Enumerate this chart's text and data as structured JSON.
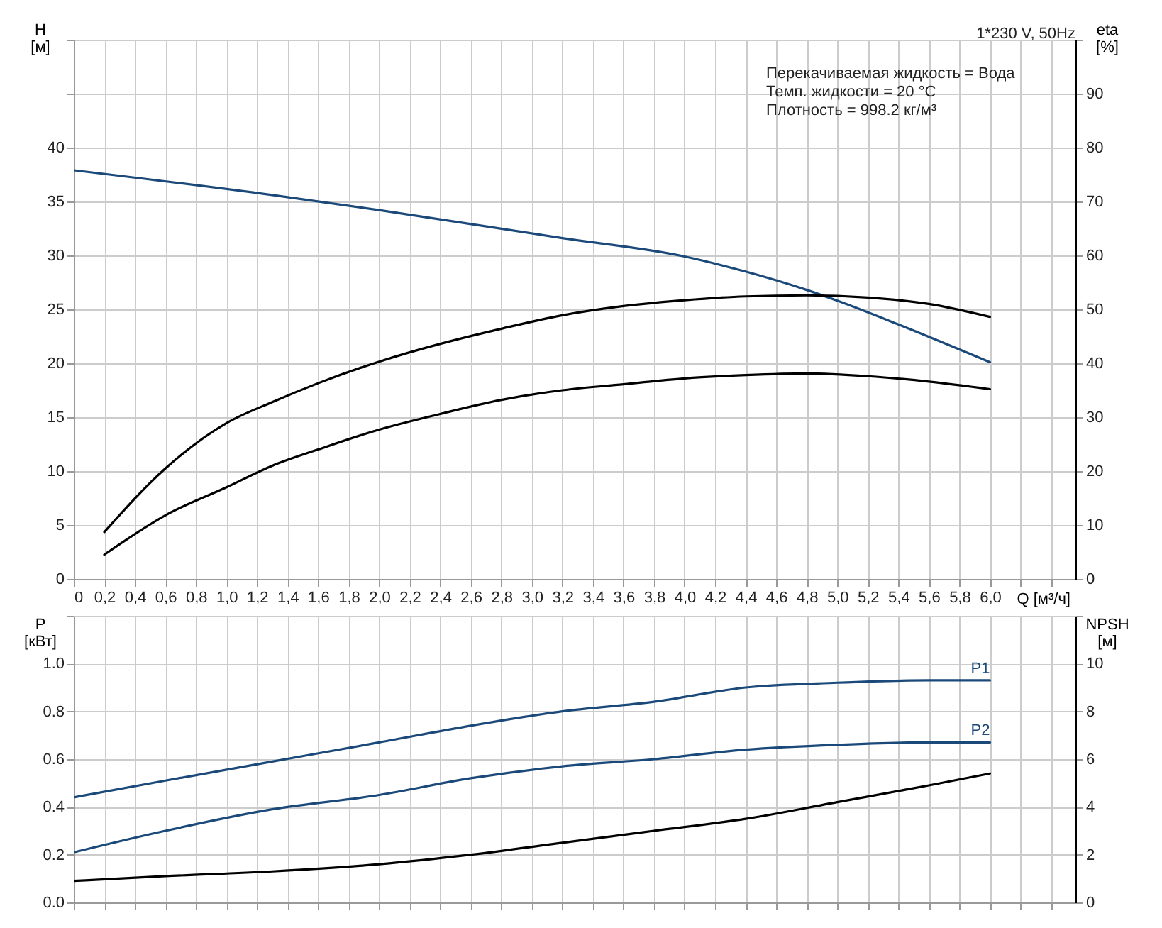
{
  "chart_data": [
    {
      "type": "line",
      "title": "1*230 V, 50Hz",
      "xlabel": "Q [м³/ч]",
      "ylabel": "H [м]",
      "y2label": "eta [%]",
      "annotations": [
        "Перекачиваемая жидкость = Вода",
        "Темп. жидкости = 20 °C",
        "Плотность = 998.2 кг/м³"
      ],
      "xlim": [
        0,
        6.56
      ],
      "xticks": [
        0,
        {
          "value": 0.2,
          "label": "0,2"
        },
        {
          "value": 0.4,
          "label": "0,4"
        },
        {
          "value": 0.6,
          "label": "0,6"
        },
        {
          "value": 0.8,
          "label": "0,8"
        },
        {
          "value": 1,
          "label": "1,0"
        },
        {
          "value": 1.2,
          "label": "1,2"
        },
        {
          "value": 1.4,
          "label": "1,4"
        },
        {
          "value": 1.6,
          "label": "1,6"
        },
        {
          "value": 1.8,
          "label": "1,8"
        },
        {
          "value": 2,
          "label": "2,0"
        },
        {
          "value": 2.2,
          "label": "2,2"
        },
        {
          "value": 2.4,
          "label": "2,4"
        },
        {
          "value": 2.6,
          "label": "2,6"
        },
        {
          "value": 2.8,
          "label": "2,8"
        },
        {
          "value": 3,
          "label": "3,0"
        },
        {
          "value": 3.2,
          "label": "3,2"
        },
        {
          "value": 3.4,
          "label": "3,4"
        },
        {
          "value": 3.6,
          "label": "3,6"
        },
        {
          "value": 3.8,
          "label": "3,8"
        },
        {
          "value": 4,
          "label": "4,0"
        },
        {
          "value": 4.2,
          "label": "4,2"
        },
        {
          "value": 4.4,
          "label": "4,4"
        },
        {
          "value": 4.6,
          "label": "4,6"
        },
        {
          "value": 4.8,
          "label": "4,8"
        },
        {
          "value": 5,
          "label": "5,0"
        },
        {
          "value": 5.2,
          "label": "5,2"
        },
        {
          "value": 5.4,
          "label": "5,4"
        },
        {
          "value": 5.6,
          "label": "5,6"
        },
        {
          "value": 5.8,
          "label": "5,8"
        },
        {
          "value": 6,
          "label": "6,0"
        },
        {
          "value": 6.2,
          "label": null
        },
        {
          "value": 6.4,
          "label": null
        }
      ],
      "ylim": [
        0,
        50
      ],
      "yticks": [
        0,
        5,
        10,
        15,
        20,
        25,
        30,
        35,
        40,
        {
          "value": 45,
          "label": null
        },
        {
          "value": 50,
          "label": null
        }
      ],
      "y2lim": [
        0,
        100
      ],
      "y2ticks": [
        0,
        10,
        20,
        30,
        40,
        50,
        60,
        70,
        80,
        90,
        {
          "value": 100,
          "label": null
        }
      ],
      "grid": true,
      "legend": false,
      "series": [
        {
          "color": "#1b4a7a",
          "x": [
            0,
            1.3,
            2.0,
            3.2,
            4.0,
            4.4,
            4.8,
            5.0,
            5.4,
            6.0
          ],
          "values": [
            37.9,
            35.6,
            34.2,
            31.6,
            29.9,
            28.5,
            26.8,
            25.8,
            23.6,
            20.1
          ]
        },
        {
          "color": "#000000",
          "axis": "y2",
          "x": [
            0.2,
            0.6,
            1.0,
            1.3,
            1.6,
            2.0,
            2.4,
            2.8,
            3.2,
            3.6,
            4.0,
            4.4,
            4.8,
            5.2,
            5.6,
            6.0
          ],
          "values": [
            8.7,
            20.5,
            28.9,
            32.8,
            36.3,
            40.3,
            43.6,
            46.4,
            48.9,
            50.6,
            51.7,
            52.4,
            52.6,
            52.2,
            51.0,
            48.6
          ]
        },
        {
          "color": "#000000",
          "axis": "y2",
          "x": [
            0.2,
            0.6,
            1.0,
            1.3,
            1.6,
            2.0,
            2.4,
            2.8,
            3.2,
            3.6,
            4.0,
            4.4,
            4.8,
            5.2,
            5.6,
            6.0
          ],
          "values": [
            4.5,
            11.8,
            17.0,
            21.0,
            24.0,
            27.7,
            30.6,
            33.2,
            35.0,
            36.1,
            37.2,
            37.8,
            38.1,
            37.6,
            36.6,
            35.2
          ]
        }
      ]
    },
    {
      "type": "line",
      "ylabel": "P [кВт]",
      "y2label": "NPSH [м]",
      "xlim": [
        0,
        6.56
      ],
      "xticks": [
        0,
        0.2,
        0.4,
        0.6,
        0.8,
        1,
        1.2,
        1.4,
        1.6,
        1.8,
        2,
        2.2,
        2.4,
        2.6,
        2.8,
        3,
        3.2,
        3.4,
        3.6,
        3.8,
        4,
        4.2,
        4.4,
        4.6,
        4.8,
        5,
        5.2,
        5.4,
        5.6,
        5.8,
        6,
        6.2,
        6.4
      ],
      "ylim": [
        0,
        1.2
      ],
      "yticks": [
        {
          "value": 0,
          "label": "0.0"
        },
        0.2,
        0.4,
        0.6,
        0.8,
        {
          "value": 1,
          "label": "1.0"
        },
        {
          "value": 1.2,
          "label": null
        }
      ],
      "y2lim": [
        0,
        12
      ],
      "y2ticks": [
        0,
        2,
        4,
        6,
        8,
        10,
        {
          "value": 12,
          "label": null
        }
      ],
      "tick_labels": "y",
      "grid": true,
      "legend": false,
      "series": [
        {
          "name": "P1",
          "color": "#1b4a7a",
          "x": [
            0,
            0.6,
            1.3,
            2.0,
            2.6,
            3.2,
            3.8,
            4.4,
            5.0,
            5.6,
            6.0
          ],
          "values": [
            0.44,
            0.51,
            0.59,
            0.67,
            0.74,
            0.8,
            0.84,
            0.9,
            0.92,
            0.93,
            0.93
          ]
        },
        {
          "name": "P2",
          "color": "#1b4a7a",
          "x": [
            0,
            0.6,
            1.3,
            2.0,
            2.6,
            3.2,
            3.8,
            4.4,
            5.0,
            5.6,
            6.0
          ],
          "values": [
            0.21,
            0.3,
            0.39,
            0.45,
            0.52,
            0.57,
            0.6,
            0.64,
            0.66,
            0.67,
            0.67
          ]
        },
        {
          "color": "#000000",
          "axis": "y2",
          "x": [
            0,
            0.6,
            1.3,
            2.0,
            2.6,
            3.2,
            3.8,
            4.4,
            5.0,
            5.6,
            6.0
          ],
          "values": [
            0.9,
            1.1,
            1.3,
            1.6,
            2.0,
            2.5,
            3.0,
            3.5,
            4.2,
            4.9,
            5.4
          ]
        }
      ]
    }
  ]
}
